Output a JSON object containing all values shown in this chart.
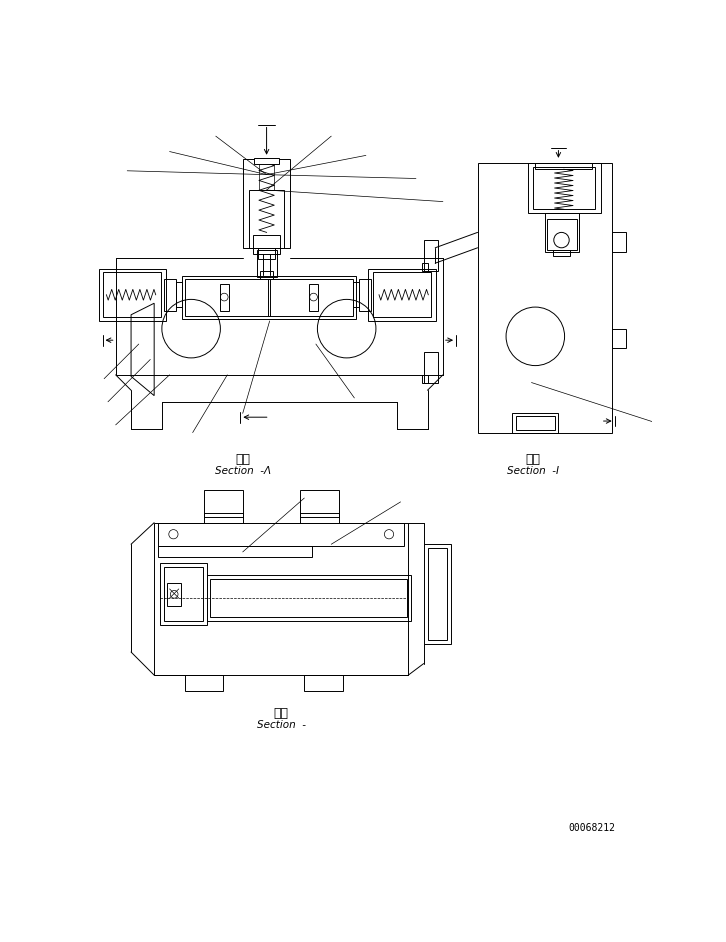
{
  "bg_color": "#ffffff",
  "line_color": "#000000",
  "fig_width": 7.26,
  "fig_height": 9.42,
  "dpi": 100,
  "section_label_1": "断面",
  "section_label_1_sub": "Section  -Λ",
  "section_label_2": "断面",
  "section_label_2_sub": "Section  -I",
  "section_label_3": "断面",
  "section_label_3_sub": "Section  -",
  "part_number": "00068212",
  "lw": 0.7
}
